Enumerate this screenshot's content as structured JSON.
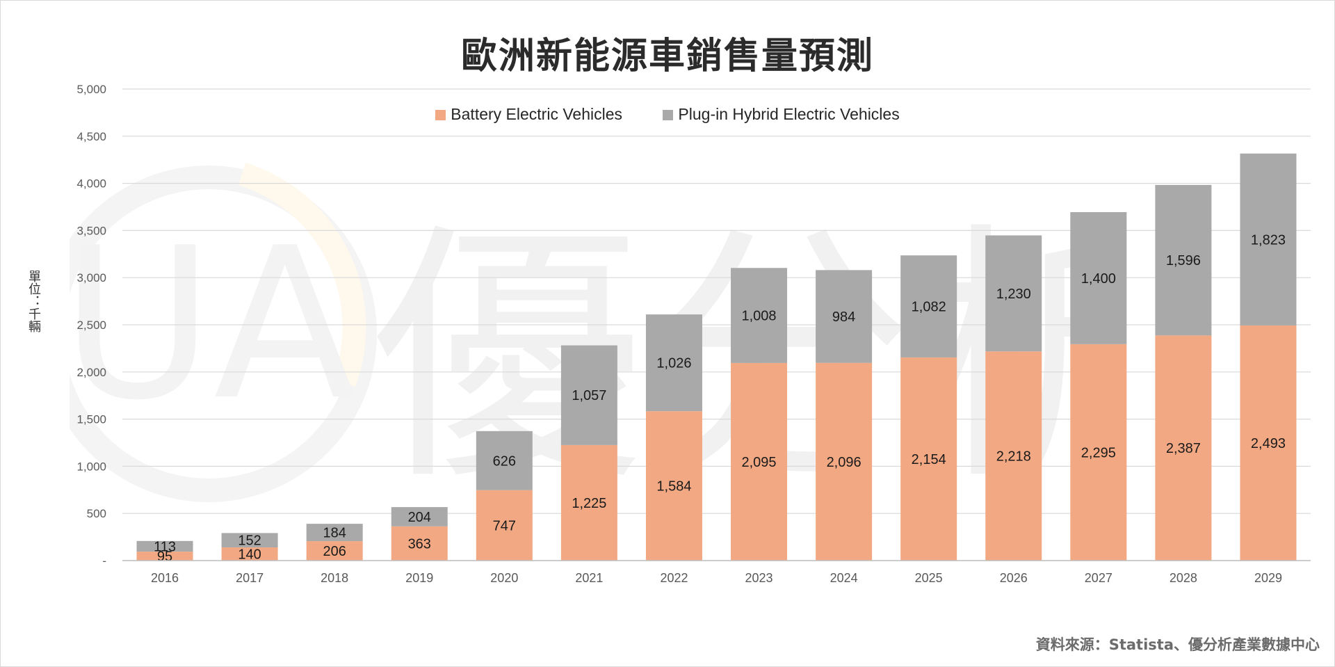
{
  "title": "歐洲新能源車銷售量預測",
  "y_unit_label": "單位：千輛",
  "source": "資料來源：Statista、優分析產業數據中心",
  "watermark": {
    "logo_text": "UA",
    "text": "優分析"
  },
  "colors": {
    "bev": "#f2a983",
    "phev": "#a9a9a9",
    "grid": "#d9d9d9",
    "axis_text": "#595959"
  },
  "chart_data": {
    "type": "bar",
    "stacked": true,
    "title": "歐洲新能源車銷售量預測",
    "ylabel": "單位：千輛",
    "xlabel": "",
    "categories": [
      "2016",
      "2017",
      "2018",
      "2019",
      "2020",
      "2021",
      "2022",
      "2023",
      "2024",
      "2025",
      "2026",
      "2027",
      "2028",
      "2029"
    ],
    "series": [
      {
        "name": "Battery Electric Vehicles",
        "values": [
          95,
          140,
          206,
          363,
          747,
          1225,
          1584,
          2095,
          2096,
          2154,
          2218,
          2295,
          2387,
          2493
        ],
        "labels": [
          "95",
          "140",
          "206",
          "363",
          "747",
          "1,225",
          "1,584",
          "2,095",
          "2,096",
          "2,154",
          "2,218",
          "2,295",
          "2,387",
          "2,493"
        ]
      },
      {
        "name": "Plug-in Hybrid Electric Vehicles",
        "values": [
          113,
          152,
          184,
          204,
          626,
          1057,
          1026,
          1008,
          984,
          1082,
          1230,
          1400,
          1596,
          1823
        ],
        "labels": [
          "113",
          "152",
          "184",
          "204",
          "626",
          "1,057",
          "1,026",
          "1,008",
          "984",
          "1,082",
          "1,230",
          "1,400",
          "1,596",
          "1,823"
        ]
      }
    ],
    "ylim": [
      0,
      5000
    ],
    "yticks": [
      0,
      500,
      1000,
      1500,
      2000,
      2500,
      3000,
      3500,
      4000,
      4500,
      5000
    ],
    "ytick_labels": [
      "-",
      "500",
      "1,000",
      "1,500",
      "2,000",
      "2,500",
      "3,000",
      "3,500",
      "4,000",
      "4,500",
      "5,000"
    ],
    "grid": true,
    "legend_position": "top-center"
  }
}
